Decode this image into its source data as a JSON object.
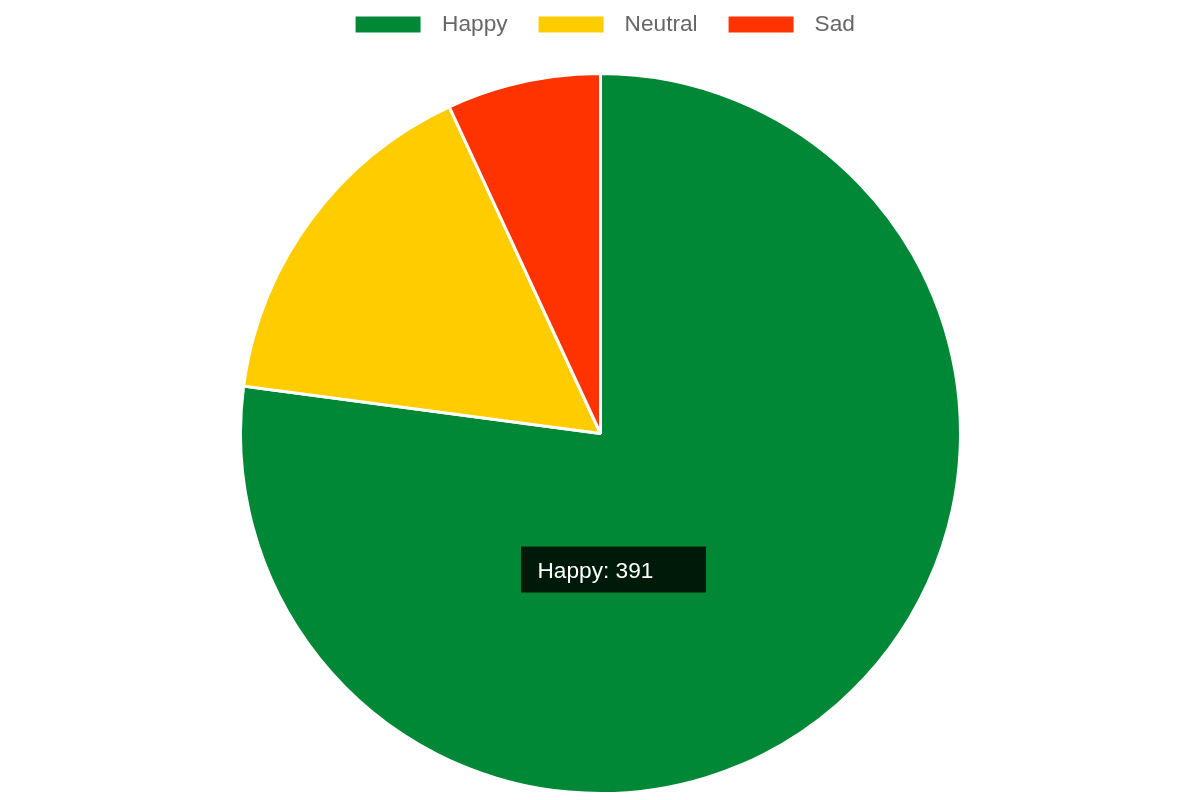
{
  "chart_data": {
    "type": "pie",
    "categories": [
      "Happy",
      "Neutral",
      "Sad"
    ],
    "values": [
      77.1,
      16.0,
      6.9
    ],
    "colors": [
      "#008837",
      "#ffcc00",
      "#ff3300"
    ],
    "legend": "top",
    "annotations": [
      "Happy: 391"
    ]
  }
}
